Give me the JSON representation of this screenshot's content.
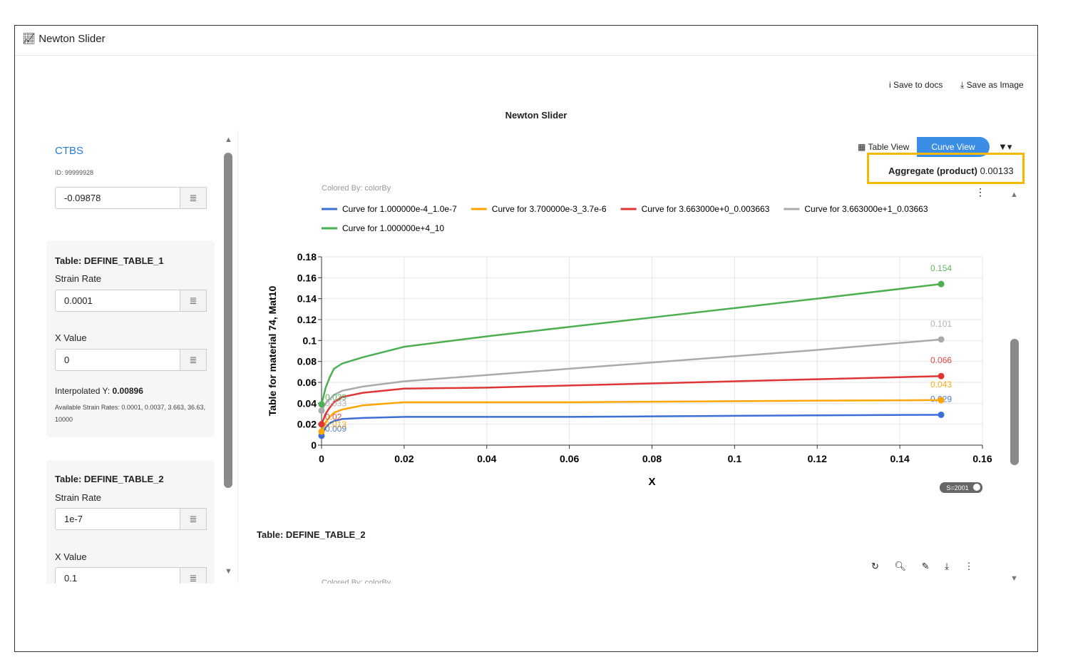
{
  "window_title": "Newton Slider",
  "toolbar": {
    "save_docs": "Save to docs",
    "save_image": "Save as Image"
  },
  "panel_title": "Newton Slider",
  "sidebar": {
    "ctbs": "CTBS",
    "id": "ID: 99999928",
    "ctbs_value": "-0.09878",
    "tables": [
      {
        "title": "Table: DEFINE_TABLE_1",
        "strain_rate_label": "Strain Rate",
        "strain_rate": "0.0001",
        "x_label": "X Value",
        "x_value": "0",
        "interpolated_label": "Interpolated Y:",
        "interpolated_value": "0.00896",
        "available": "Available Strain Rates: 0.0001, 0.0037, 3.663, 36.63, 10000"
      },
      {
        "title": "Table: DEFINE_TABLE_2",
        "strain_rate_label": "Strain Rate",
        "strain_rate": "1e-7",
        "x_label": "X Value",
        "x_value": "0.1"
      }
    ]
  },
  "view_tabs": {
    "table_view": "Table View",
    "curve_view": "Curve View"
  },
  "aggregate": {
    "label": "Aggregate (product)",
    "value": "0.00133"
  },
  "colored_by": "Colored By: colorBy",
  "chart_data": {
    "type": "line",
    "xlabel": "X",
    "ylabel": "Table for material 74, Mat10",
    "x": [
      0,
      0.001,
      0.002,
      0.003,
      0.005,
      0.01,
      0.02,
      0.04,
      0.06,
      0.08,
      0.1,
      0.12,
      0.15
    ],
    "series": [
      {
        "name": "Curve for 1.000000e-4_1.0e-7",
        "color": "#3b6fd6",
        "values": [
          0.009,
          0.017,
          0.021,
          0.023,
          0.025,
          0.026,
          0.027,
          0.027,
          0.027,
          0.0275,
          0.028,
          0.0285,
          0.029
        ]
      },
      {
        "name": "Curve for 3.700000e-3_3.7e-6",
        "color": "#ffa500",
        "values": [
          0.013,
          0.022,
          0.027,
          0.031,
          0.034,
          0.038,
          0.041,
          0.041,
          0.041,
          0.0415,
          0.042,
          0.0425,
          0.043
        ]
      },
      {
        "name": "Curve for 3.663000e+0_0.003663",
        "color": "#e03535",
        "values": [
          0.02,
          0.03,
          0.036,
          0.041,
          0.046,
          0.05,
          0.054,
          0.055,
          0.057,
          0.059,
          0.061,
          0.063,
          0.066
        ]
      },
      {
        "name": "Curve for 3.663000e+1_0.03663",
        "color": "#aaaaaa",
        "values": [
          0.033,
          0.04,
          0.044,
          0.048,
          0.052,
          0.056,
          0.061,
          0.067,
          0.073,
          0.079,
          0.085,
          0.091,
          0.101
        ]
      },
      {
        "name": "Curve for 1.000000e+4_10",
        "color": "#4caf50",
        "values": [
          0.039,
          0.055,
          0.065,
          0.073,
          0.078,
          0.084,
          0.094,
          0.104,
          0.113,
          0.122,
          0.131,
          0.14,
          0.154
        ]
      }
    ],
    "xlim": [
      0,
      0.16
    ],
    "xticks": [
      0,
      0.02,
      0.04,
      0.06,
      0.08,
      0.1,
      0.12,
      0.14,
      0.16
    ],
    "ylim": [
      0,
      0.18
    ],
    "yticks": [
      0,
      0.02,
      0.04,
      0.06,
      0.08,
      0.1,
      0.12,
      0.14,
      0.16,
      0.18
    ],
    "grid": true
  },
  "badge": "S=2001",
  "second_table": {
    "title": "Table: DEFINE_TABLE_2",
    "colored_by": "Colored By: colorBy"
  }
}
